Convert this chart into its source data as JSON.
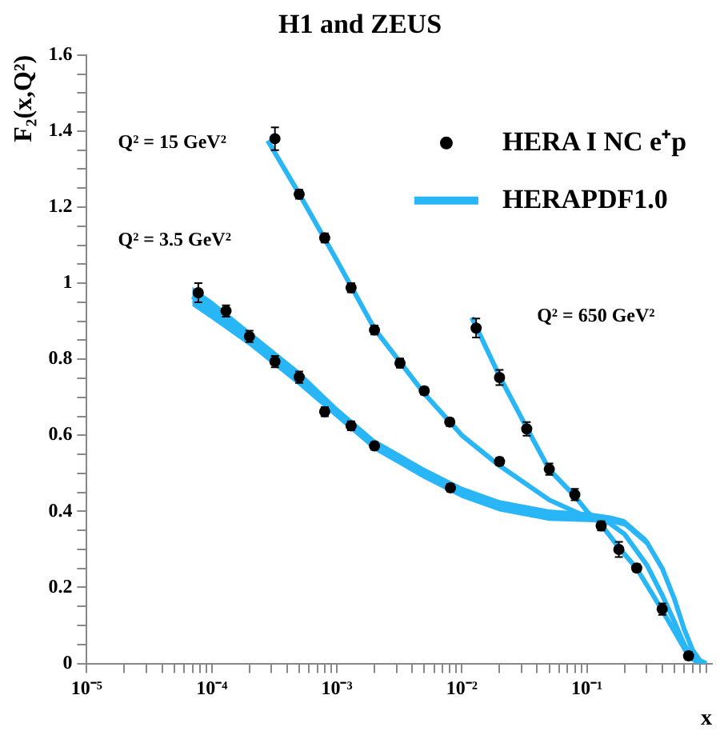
{
  "chart_data": {
    "type": "scatter",
    "title": "H1 and ZEUS",
    "xlabel": "x",
    "ylabel": "F₂(x,Q²)",
    "log": "x",
    "xlim": [
      1e-05,
      1
    ],
    "ylim": [
      0,
      1.6
    ],
    "xticks": [
      {
        "value": 1e-05,
        "label": "10⁻⁵"
      },
      {
        "value": 2e-05,
        "label": null
      },
      {
        "value": 3e-05,
        "label": null
      },
      {
        "value": 4e-05,
        "label": null
      },
      {
        "value": 5e-05,
        "label": null
      },
      {
        "value": 6e-05,
        "label": null
      },
      {
        "value": 7e-05,
        "label": null
      },
      {
        "value": 8e-05,
        "label": null
      },
      {
        "value": 9e-05,
        "label": null
      },
      {
        "value": 0.0001,
        "label": "10⁻⁴"
      },
      {
        "value": 0.0002,
        "label": null
      },
      {
        "value": 0.0003,
        "label": null
      },
      {
        "value": 0.0004,
        "label": null
      },
      {
        "value": 0.0005,
        "label": null
      },
      {
        "value": 0.0006,
        "label": null
      },
      {
        "value": 0.0007,
        "label": null
      },
      {
        "value": 0.0008,
        "label": null
      },
      {
        "value": 0.0009,
        "label": null
      },
      {
        "value": 0.001,
        "label": "10⁻³"
      },
      {
        "value": 0.002,
        "label": null
      },
      {
        "value": 0.003,
        "label": null
      },
      {
        "value": 0.004,
        "label": null
      },
      {
        "value": 0.005,
        "label": null
      },
      {
        "value": 0.006,
        "label": null
      },
      {
        "value": 0.007,
        "label": null
      },
      {
        "value": 0.008,
        "label": null
      },
      {
        "value": 0.009,
        "label": null
      },
      {
        "value": 0.01,
        "label": "10⁻²"
      },
      {
        "value": 0.02,
        "label": null
      },
      {
        "value": 0.03,
        "label": null
      },
      {
        "value": 0.04,
        "label": null
      },
      {
        "value": 0.05,
        "label": null
      },
      {
        "value": 0.06,
        "label": null
      },
      {
        "value": 0.07,
        "label": null
      },
      {
        "value": 0.08,
        "label": null
      },
      {
        "value": 0.09,
        "label": null
      },
      {
        "value": 0.1,
        "label": "10⁻¹"
      },
      {
        "value": 0.2,
        "label": null
      },
      {
        "value": 0.3,
        "label": null
      },
      {
        "value": 0.4,
        "label": null
      },
      {
        "value": 0.5,
        "label": null
      },
      {
        "value": 0.6,
        "label": null
      },
      {
        "value": 0.7,
        "label": null
      },
      {
        "value": 0.8,
        "label": null
      },
      {
        "value": 0.9,
        "label": null
      }
    ],
    "yticks": [
      0,
      {
        "value": 0.05,
        "label": null
      },
      {
        "value": 0.1,
        "label": null
      },
      {
        "value": 0.15,
        "label": null
      },
      0.2,
      {
        "value": 0.25,
        "label": null
      },
      {
        "value": 0.3,
        "label": null
      },
      {
        "value": 0.35,
        "label": null
      },
      0.4,
      {
        "value": 0.45,
        "label": null
      },
      {
        "value": 0.5,
        "label": null
      },
      {
        "value": 0.55,
        "label": null
      },
      0.6,
      {
        "value": 0.65,
        "label": null
      },
      {
        "value": 0.7,
        "label": null
      },
      {
        "value": 0.75,
        "label": null
      },
      0.8,
      {
        "value": 0.85,
        "label": null
      },
      {
        "value": 0.9,
        "label": null
      },
      {
        "value": 0.95,
        "label": null
      },
      1,
      {
        "value": 1.05,
        "label": null
      },
      {
        "value": 1.1,
        "label": null
      },
      {
        "value": 1.15,
        "label": null
      },
      1.2,
      {
        "value": 1.25,
        "label": null
      },
      {
        "value": 1.3,
        "label": null
      },
      {
        "value": 1.35,
        "label": null
      },
      1.4,
      {
        "value": 1.45,
        "label": null
      },
      {
        "value": 1.5,
        "label": null
      },
      {
        "value": 1.55,
        "label": null
      },
      1.6
    ],
    "grid": false,
    "legend": "top right",
    "marker": "circle",
    "annotations": [
      "Q² = 15 GeV²",
      "Q² = 3.5 GeV²",
      "Q² = 650 GeV²"
    ],
    "series": [
      {
        "name": "HERA I NC e⁺p",
        "color": "#000000",
        "x": [
          7.8e-05,
          0.00013,
          0.0002,
          0.00032,
          0.0005,
          0.0008,
          0.0013,
          0.002,
          0.0081
        ],
        "values": [
          0.975,
          0.927,
          0.86,
          0.794,
          0.753,
          0.662,
          0.625,
          0.572,
          0.462
        ],
        "errors": [
          0.025,
          0.015,
          0.015,
          0.015,
          0.015,
          0.012,
          0.012,
          0.01,
          0.01
        ]
      },
      {
        "color": "#000000",
        "x": [
          0.00032,
          0.0005,
          0.0008,
          0.0013,
          0.002,
          0.0032,
          0.005,
          0.008,
          0.02
        ],
        "values": [
          1.38,
          1.234,
          1.119,
          0.988,
          0.877,
          0.79,
          0.717,
          0.635,
          0.531
        ],
        "errors": [
          0.03,
          0.012,
          0.012,
          0.012,
          0.012,
          0.012,
          0.01,
          0.01,
          0.01
        ]
      },
      {
        "color": "#000000",
        "x": [
          0.013,
          0.02,
          0.033,
          0.05,
          0.08,
          0.13,
          0.18,
          0.25,
          0.4,
          0.65
        ],
        "values": [
          0.882,
          0.752,
          0.617,
          0.511,
          0.444,
          0.362,
          0.3,
          0.251,
          0.143,
          0.02
        ],
        "errors": [
          0.025,
          0.02,
          0.018,
          0.015,
          0.015,
          0.012,
          0.02,
          0.01,
          0.015,
          0.01
        ]
      },
      {
        "name": "HERAPDF1.0",
        "type": "line",
        "marker": "none",
        "color": "#29b6f6",
        "x": [
          7e-05,
          0.0001,
          0.0002,
          0.0005,
          0.001,
          0.002,
          0.005,
          0.01,
          0.02,
          0.05,
          0.1,
          0.15,
          0.2,
          0.3,
          0.4,
          0.5,
          0.6,
          0.7,
          0.8,
          0.9
        ],
        "values": [
          0.965,
          0.93,
          0.855,
          0.75,
          0.66,
          0.575,
          0.5,
          0.45,
          0.415,
          0.39,
          0.385,
          0.38,
          0.37,
          0.32,
          0.25,
          0.17,
          0.09,
          0.035,
          0.008,
          0
        ],
        "lower": [
          0.94,
          0.905,
          0.835,
          0.73,
          0.645,
          0.56,
          0.485,
          0.435,
          0.4,
          0.375,
          0.372,
          0.37,
          0.36,
          0.31,
          0.24,
          0.162,
          0.084,
          0.03,
          0.004,
          0
        ],
        "upper": [
          0.99,
          0.955,
          0.875,
          0.77,
          0.675,
          0.59,
          0.515,
          0.465,
          0.43,
          0.405,
          0.398,
          0.39,
          0.38,
          0.33,
          0.26,
          0.178,
          0.096,
          0.04,
          0.012,
          0.002
        ]
      },
      {
        "type": "line",
        "marker": "none",
        "color": "#29b6f6",
        "x": [
          0.00028,
          0.0005,
          0.001,
          0.002,
          0.005,
          0.01,
          0.02,
          0.05,
          0.1,
          0.15,
          0.2,
          0.3,
          0.4,
          0.5,
          0.6,
          0.7,
          0.8,
          0.9
        ],
        "values": [
          1.375,
          1.235,
          1.06,
          0.88,
          0.71,
          0.6,
          0.52,
          0.43,
          0.385,
          0.37,
          0.34,
          0.26,
          0.18,
          0.11,
          0.05,
          0.015,
          0.002,
          0
        ]
      },
      {
        "type": "line",
        "marker": "none",
        "color": "#29b6f6",
        "x": [
          0.012,
          0.02,
          0.033,
          0.05,
          0.08,
          0.1,
          0.13,
          0.18,
          0.25,
          0.4,
          0.5,
          0.65,
          0.75,
          0.9
        ],
        "values": [
          0.91,
          0.755,
          0.62,
          0.51,
          0.44,
          0.4,
          0.365,
          0.305,
          0.25,
          0.14,
          0.085,
          0.02,
          0.005,
          0
        ]
      }
    ]
  }
}
